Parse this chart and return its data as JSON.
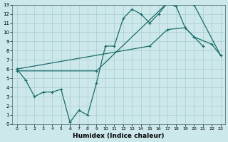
{
  "xlabel": "Humidex (Indice chaleur)",
  "background_color": "#cde8ea",
  "grid_color": "#aacccc",
  "line_color": "#1a6b6b",
  "xlim": [
    -0.5,
    23.5
  ],
  "ylim": [
    0,
    13
  ],
  "xticks": [
    0,
    1,
    2,
    3,
    4,
    5,
    6,
    7,
    8,
    9,
    10,
    11,
    12,
    13,
    14,
    15,
    16,
    17,
    18,
    19,
    20,
    21,
    22,
    23
  ],
  "yticks": [
    0,
    1,
    2,
    3,
    4,
    5,
    6,
    7,
    8,
    9,
    10,
    11,
    12,
    13
  ],
  "line1_x": [
    0,
    1,
    2,
    3,
    4,
    5,
    6,
    7,
    8,
    9,
    10,
    11,
    12,
    13,
    14,
    15,
    16,
    17,
    18,
    19,
    20,
    21
  ],
  "line1_y": [
    6.0,
    4.8,
    3.0,
    3.5,
    3.5,
    3.8,
    0.2,
    1.5,
    1.0,
    4.5,
    8.5,
    8.5,
    11.5,
    12.5,
    12.0,
    11.0,
    12.0,
    13.2,
    12.8,
    10.5,
    9.5,
    8.5
  ],
  "line2_x": [
    0,
    15,
    17,
    19,
    20,
    22,
    23
  ],
  "line2_y": [
    6.0,
    8.5,
    10.3,
    10.5,
    9.5,
    8.7,
    7.5
  ],
  "line3_x": [
    0,
    9,
    17,
    20,
    23
  ],
  "line3_y": [
    5.8,
    5.8,
    13.2,
    13.0,
    7.5
  ]
}
